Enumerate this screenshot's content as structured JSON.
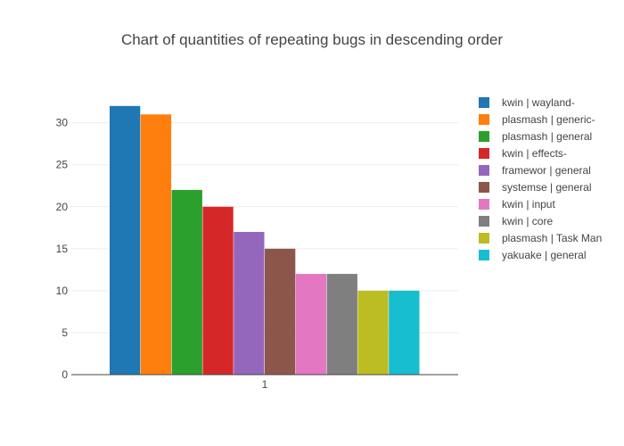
{
  "chart_data": {
    "type": "bar",
    "title": "Chart of quantities of repeating bugs in descending order",
    "categories": [
      "1"
    ],
    "ylim": [
      0,
      34
    ],
    "yticks": [
      0,
      5,
      10,
      15,
      20,
      25,
      30
    ],
    "grid": true,
    "legend_position": "right",
    "series": [
      {
        "name": "kwin | wayland-",
        "values": [
          32
        ],
        "color": "#1f77b4"
      },
      {
        "name": "plasmash | generic-",
        "values": [
          31
        ],
        "color": "#ff7f0e"
      },
      {
        "name": "plasmash | general",
        "values": [
          22
        ],
        "color": "#2ca02c"
      },
      {
        "name": "kwin | effects-",
        "values": [
          20
        ],
        "color": "#d62728"
      },
      {
        "name": "framewor | general",
        "values": [
          17
        ],
        "color": "#9467bd"
      },
      {
        "name": "systemse | general",
        "values": [
          15
        ],
        "color": "#8c564b"
      },
      {
        "name": "kwin | input",
        "values": [
          12
        ],
        "color": "#e377c2"
      },
      {
        "name": "kwin | core",
        "values": [
          12
        ],
        "color": "#7f7f7f"
      },
      {
        "name": "plasmash | Task Man",
        "values": [
          10
        ],
        "color": "#bcbd22"
      },
      {
        "name": "yakuake | general",
        "values": [
          10
        ],
        "color": "#17becf"
      }
    ]
  }
}
